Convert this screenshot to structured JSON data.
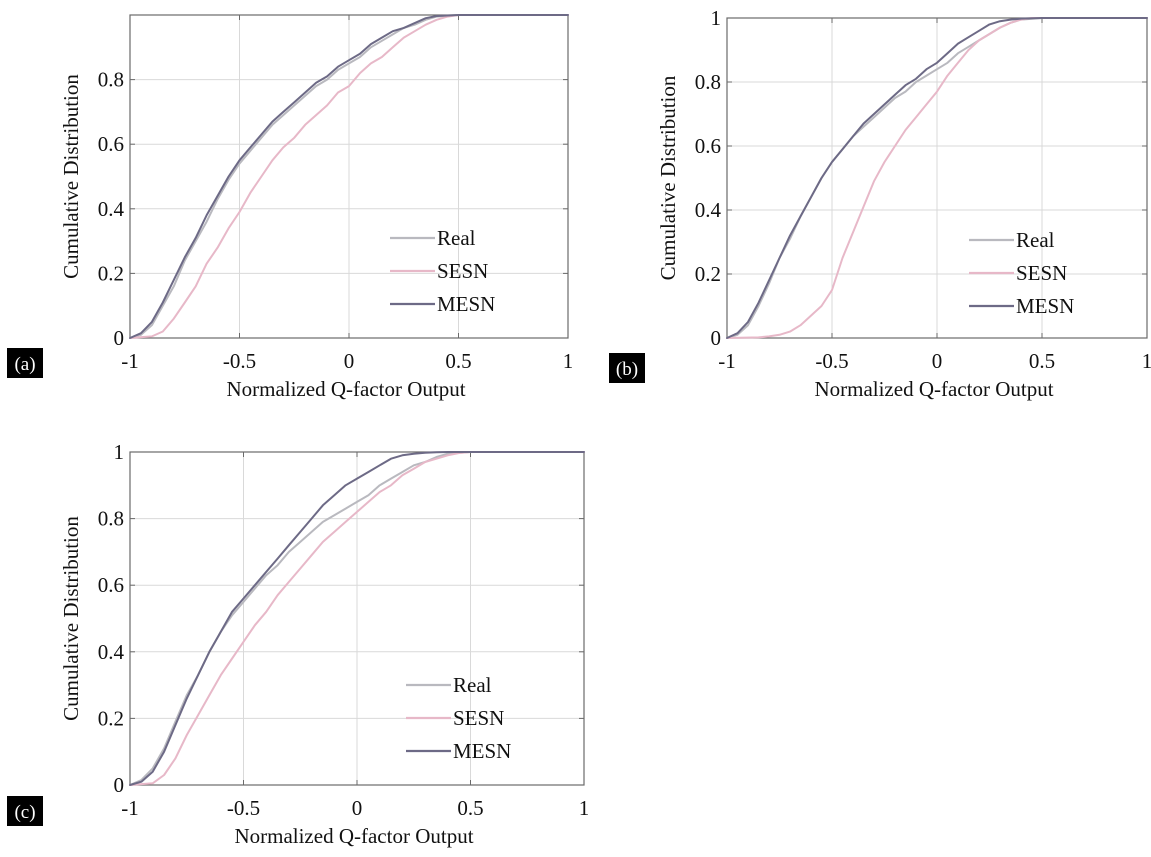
{
  "legend_labels": [
    "Real",
    "SESN",
    "MESN"
  ],
  "colors": {
    "Real": "#b9b9bf",
    "SESN": "#e7b8c8",
    "MESN": "#6d6a86"
  },
  "chart_data": [
    {
      "panel": "(a)",
      "type": "line",
      "xlabel": "Normalized Q-factor Output",
      "ylabel": "Cumulative Distribution",
      "xlim": [
        -1,
        1
      ],
      "ylim": [
        0,
        1
      ],
      "xticks": [
        "-1",
        "-0.5",
        "0",
        "0.5",
        "1"
      ],
      "yticks": [
        "0",
        "0.2",
        "0.4",
        "0.6",
        "0.8"
      ],
      "grid": true,
      "legend_position": "bottom-right",
      "series": [
        {
          "name": "Real",
          "x": [
            -1,
            -0.95,
            -0.9,
            -0.85,
            -0.8,
            -0.75,
            -0.7,
            -0.65,
            -0.6,
            -0.55,
            -0.5,
            -0.45,
            -0.4,
            -0.35,
            -0.3,
            -0.25,
            -0.2,
            -0.15,
            -0.1,
            -0.05,
            0,
            0.05,
            0.1,
            0.15,
            0.2,
            0.25,
            0.3,
            0.35,
            0.4,
            0.5,
            0.7,
            1
          ],
          "y": [
            0,
            0.01,
            0.04,
            0.1,
            0.16,
            0.24,
            0.3,
            0.36,
            0.43,
            0.49,
            0.54,
            0.58,
            0.62,
            0.66,
            0.69,
            0.72,
            0.75,
            0.78,
            0.8,
            0.83,
            0.85,
            0.87,
            0.9,
            0.92,
            0.94,
            0.96,
            0.97,
            0.985,
            0.995,
            1,
            1,
            1
          ]
        },
        {
          "name": "SESN",
          "x": [
            -1,
            -0.9,
            -0.85,
            -0.8,
            -0.75,
            -0.7,
            -0.65,
            -0.6,
            -0.55,
            -0.5,
            -0.45,
            -0.4,
            -0.35,
            -0.3,
            -0.25,
            -0.2,
            -0.15,
            -0.1,
            -0.05,
            0,
            0.05,
            0.1,
            0.15,
            0.2,
            0.25,
            0.3,
            0.35,
            0.4,
            0.45,
            0.5,
            0.7,
            1
          ],
          "y": [
            0,
            0.005,
            0.02,
            0.06,
            0.11,
            0.16,
            0.23,
            0.28,
            0.34,
            0.39,
            0.45,
            0.5,
            0.55,
            0.59,
            0.62,
            0.66,
            0.69,
            0.72,
            0.76,
            0.78,
            0.82,
            0.85,
            0.87,
            0.9,
            0.93,
            0.95,
            0.97,
            0.985,
            0.995,
            1,
            1,
            1
          ]
        },
        {
          "name": "MESN",
          "x": [
            -1,
            -0.95,
            -0.9,
            -0.85,
            -0.8,
            -0.75,
            -0.7,
            -0.65,
            -0.6,
            -0.55,
            -0.5,
            -0.45,
            -0.4,
            -0.35,
            -0.3,
            -0.25,
            -0.2,
            -0.15,
            -0.1,
            -0.05,
            0,
            0.05,
            0.1,
            0.15,
            0.2,
            0.25,
            0.3,
            0.35,
            0.4,
            0.5,
            0.7,
            1
          ],
          "y": [
            0,
            0.015,
            0.05,
            0.11,
            0.18,
            0.25,
            0.31,
            0.38,
            0.44,
            0.5,
            0.55,
            0.59,
            0.63,
            0.67,
            0.7,
            0.73,
            0.76,
            0.79,
            0.81,
            0.84,
            0.86,
            0.88,
            0.91,
            0.93,
            0.95,
            0.96,
            0.975,
            0.99,
            0.997,
            1,
            1,
            1
          ]
        }
      ]
    },
    {
      "panel": "(b)",
      "type": "line",
      "xlabel": "Normalized Q-factor Output",
      "ylabel": "Cumulative Distribution",
      "xlim": [
        -1,
        1
      ],
      "ylim": [
        0,
        1
      ],
      "xticks": [
        "-1",
        "-0.5",
        "0",
        "0.5",
        "1"
      ],
      "yticks": [
        "0",
        "0.2",
        "0.4",
        "0.6",
        "0.8",
        "1"
      ],
      "grid": true,
      "legend_position": "bottom-right",
      "series": [
        {
          "name": "Real",
          "x": [
            -1,
            -0.95,
            -0.9,
            -0.85,
            -0.8,
            -0.75,
            -0.7,
            -0.65,
            -0.6,
            -0.55,
            -0.5,
            -0.45,
            -0.4,
            -0.35,
            -0.3,
            -0.25,
            -0.2,
            -0.15,
            -0.1,
            -0.05,
            0,
            0.05,
            0.1,
            0.15,
            0.2,
            0.25,
            0.3,
            0.35,
            0.4,
            0.5,
            0.7,
            1
          ],
          "y": [
            0,
            0.01,
            0.04,
            0.1,
            0.17,
            0.25,
            0.31,
            0.38,
            0.44,
            0.5,
            0.55,
            0.59,
            0.63,
            0.66,
            0.69,
            0.72,
            0.75,
            0.77,
            0.8,
            0.82,
            0.84,
            0.86,
            0.89,
            0.91,
            0.93,
            0.95,
            0.97,
            0.985,
            0.995,
            1,
            1,
            1
          ]
        },
        {
          "name": "SESN",
          "x": [
            -1,
            -0.85,
            -0.8,
            -0.75,
            -0.7,
            -0.65,
            -0.6,
            -0.55,
            -0.5,
            -0.45,
            -0.4,
            -0.35,
            -0.3,
            -0.25,
            -0.2,
            -0.15,
            -0.1,
            -0.05,
            0,
            0.05,
            0.1,
            0.15,
            0.2,
            0.25,
            0.3,
            0.35,
            0.4,
            0.45,
            0.5,
            0.7,
            1
          ],
          "y": [
            0,
            0.002,
            0.005,
            0.01,
            0.02,
            0.04,
            0.07,
            0.1,
            0.15,
            0.25,
            0.33,
            0.41,
            0.49,
            0.55,
            0.6,
            0.65,
            0.69,
            0.73,
            0.77,
            0.82,
            0.86,
            0.9,
            0.93,
            0.95,
            0.97,
            0.985,
            0.995,
            1,
            1,
            1,
            1
          ]
        },
        {
          "name": "MESN",
          "x": [
            -1,
            -0.95,
            -0.9,
            -0.85,
            -0.8,
            -0.75,
            -0.7,
            -0.65,
            -0.6,
            -0.55,
            -0.5,
            -0.45,
            -0.4,
            -0.35,
            -0.3,
            -0.25,
            -0.2,
            -0.15,
            -0.1,
            -0.05,
            0,
            0.05,
            0.1,
            0.15,
            0.2,
            0.25,
            0.3,
            0.35,
            0.4,
            0.5,
            0.7,
            1
          ],
          "y": [
            0,
            0.015,
            0.05,
            0.11,
            0.18,
            0.25,
            0.32,
            0.38,
            0.44,
            0.5,
            0.55,
            0.59,
            0.63,
            0.67,
            0.7,
            0.73,
            0.76,
            0.79,
            0.81,
            0.84,
            0.86,
            0.89,
            0.92,
            0.94,
            0.96,
            0.98,
            0.99,
            0.995,
            0.998,
            1,
            1,
            1
          ]
        }
      ]
    },
    {
      "panel": "(c)",
      "type": "line",
      "xlabel": "Normalized Q-factor Output",
      "ylabel": "Cumulative Distribution",
      "xlim": [
        -1,
        1
      ],
      "ylim": [
        0,
        1
      ],
      "xticks": [
        "-1",
        "-0.5",
        "0",
        "0.5",
        "1"
      ],
      "yticks": [
        "0",
        "0.2",
        "0.4",
        "0.6",
        "0.8",
        "1"
      ],
      "grid": true,
      "legend_position": "bottom-right",
      "series": [
        {
          "name": "Real",
          "x": [
            -1,
            -0.95,
            -0.9,
            -0.85,
            -0.8,
            -0.75,
            -0.7,
            -0.65,
            -0.6,
            -0.55,
            -0.5,
            -0.45,
            -0.4,
            -0.35,
            -0.3,
            -0.25,
            -0.2,
            -0.15,
            -0.1,
            -0.05,
            0,
            0.05,
            0.1,
            0.15,
            0.2,
            0.25,
            0.3,
            0.35,
            0.4,
            0.5,
            0.7,
            1
          ],
          "y": [
            0,
            0.015,
            0.05,
            0.11,
            0.19,
            0.27,
            0.33,
            0.4,
            0.46,
            0.51,
            0.55,
            0.59,
            0.63,
            0.66,
            0.7,
            0.73,
            0.76,
            0.79,
            0.81,
            0.83,
            0.85,
            0.87,
            0.9,
            0.92,
            0.94,
            0.96,
            0.97,
            0.985,
            0.995,
            1,
            1,
            1
          ]
        },
        {
          "name": "SESN",
          "x": [
            -1,
            -0.9,
            -0.85,
            -0.8,
            -0.75,
            -0.7,
            -0.65,
            -0.6,
            -0.55,
            -0.5,
            -0.45,
            -0.4,
            -0.35,
            -0.3,
            -0.25,
            -0.2,
            -0.15,
            -0.1,
            -0.05,
            0,
            0.05,
            0.1,
            0.15,
            0.2,
            0.25,
            0.3,
            0.35,
            0.4,
            0.45,
            0.5,
            0.7,
            1
          ],
          "y": [
            0,
            0.005,
            0.03,
            0.08,
            0.15,
            0.21,
            0.27,
            0.33,
            0.38,
            0.43,
            0.48,
            0.52,
            0.57,
            0.61,
            0.65,
            0.69,
            0.73,
            0.76,
            0.79,
            0.82,
            0.85,
            0.88,
            0.9,
            0.93,
            0.95,
            0.97,
            0.98,
            0.99,
            0.997,
            1,
            1,
            1
          ]
        },
        {
          "name": "MESN",
          "x": [
            -1,
            -0.95,
            -0.9,
            -0.85,
            -0.8,
            -0.75,
            -0.7,
            -0.65,
            -0.6,
            -0.55,
            -0.5,
            -0.45,
            -0.4,
            -0.35,
            -0.3,
            -0.25,
            -0.2,
            -0.15,
            -0.1,
            -0.05,
            0,
            0.05,
            0.1,
            0.15,
            0.2,
            0.25,
            0.3,
            0.35,
            0.4,
            0.5,
            0.7,
            1
          ],
          "y": [
            0,
            0.01,
            0.04,
            0.1,
            0.18,
            0.26,
            0.33,
            0.4,
            0.46,
            0.52,
            0.56,
            0.6,
            0.64,
            0.68,
            0.72,
            0.76,
            0.8,
            0.84,
            0.87,
            0.9,
            0.92,
            0.94,
            0.96,
            0.98,
            0.99,
            0.995,
            0.998,
            0.999,
            1,
            1,
            1,
            1
          ]
        }
      ]
    }
  ]
}
